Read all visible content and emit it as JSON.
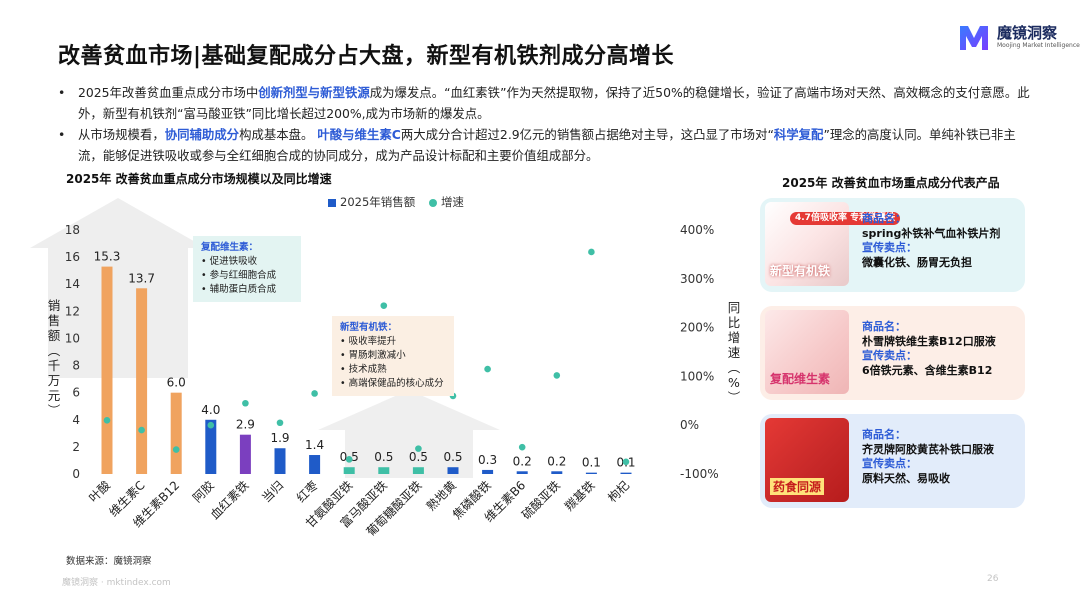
{
  "header": {
    "title": "改善贫血市场|基础复配成分占大盘，新型有机铁剂成分高增长",
    "logo_text": "魔镜洞察",
    "logo_subtext": "Moojing Market Intelligence"
  },
  "bullets": [
    {
      "marker": "•",
      "segments": [
        {
          "text": "2025年改善贫血重点成分市场中",
          "hl": false
        },
        {
          "text": "创新剂型与新型铁源",
          "hl": true
        },
        {
          "text": "成为爆发点。“血红素铁”作为天然提取物，保持了近50%的稳健增长，验证了高端市场对天然、高效概念的支付意愿。此外，新型有机铁剂“富马酸亚铁”同比增长超过200%,成为市场新的爆发点。",
          "hl": false
        }
      ]
    },
    {
      "marker": "•",
      "segments": [
        {
          "text": "从市场规模看，",
          "hl": false
        },
        {
          "text": "协同辅助成分",
          "hl": true
        },
        {
          "text": "构成基本盘。 ",
          "hl": false
        },
        {
          "text": "叶酸与维生素C",
          "hl": true
        },
        {
          "text": "两大成分合计超过2.9亿元的销售额占据绝对主导，这凸显了市场对“",
          "hl": false
        },
        {
          "text": "科学复配",
          "hl": true
        },
        {
          "text": "”理念的高度认同。单纯补铁已非主流，能够促进铁吸收或参与全红细胞合成的协同成分，成为产品设计标配和主要价值组成部分。",
          "hl": false
        }
      ]
    }
  ],
  "chart_title": "2025年 改善贫血重点成分市场规模以及同比增速",
  "right_title": "2025年 改善贫血市场重点成分代表产品",
  "legend": {
    "bar": "2025年销售额",
    "dot": "增速"
  },
  "y_axis_label": [
    "销",
    "售",
    "额",
    "︵",
    "千",
    "万",
    "元",
    "︶"
  ],
  "y2_axis_label": [
    "同",
    "比",
    "增",
    "速",
    "︵",
    "%",
    "︶"
  ],
  "notes": [
    {
      "title": "复配维生素：",
      "items": [
        "促进铁吸收",
        "参与红细胞合成",
        "辅助蛋白质合成"
      ]
    },
    {
      "title": "新型有机铁：",
      "items": [
        "吸收率提升",
        "胃肠刺激减小",
        "技术成熟",
        "高端保健品的核心成分"
      ]
    }
  ],
  "chart_data": {
    "type": "bar",
    "title": "2025年 改善贫血重点成分市场规模以及同比增速",
    "categories": [
      "叶酸",
      "维生素C",
      "维生素B12",
      "阿胶",
      "血红素铁",
      "当归",
      "红枣",
      "甘氨酸亚铁",
      "富马酸亚铁",
      "葡萄糖酸亚铁",
      "熟地黄",
      "焦磷酸铁",
      "维生素B6",
      "硫酸亚铁",
      "羰基铁",
      "枸杞"
    ],
    "series": [
      {
        "name": "2025年销售额",
        "axis": "left",
        "values": [
          15.3,
          13.7,
          6.0,
          4.0,
          2.9,
          1.9,
          1.4,
          0.5,
          0.5,
          0.5,
          0.5,
          0.3,
          0.2,
          0.2,
          0.1,
          0.1
        ],
        "colors": [
          "#f0a35f",
          "#f0a35f",
          "#f0a35f",
          "#1f5bc8",
          "#7b3fbf",
          "#1f5bc8",
          "#1f5bc8",
          "#3fbfa6",
          "#3fbfa6",
          "#3fbfa6",
          "#1f5bc8",
          "#1f5bc8",
          "#1f5bc8",
          "#1f5bc8",
          "#1f5bc8",
          "#1f5bc8"
        ]
      },
      {
        "name": "增速",
        "axis": "right",
        "type": "scatter",
        "values": [
          10,
          -10,
          -50,
          0,
          45,
          5,
          65,
          -70,
          245,
          -48,
          60,
          115,
          -45,
          102,
          355,
          -75
        ]
      }
    ],
    "ylabel": "销售额（千万元）",
    "y2label": "同比增速（%）",
    "ylim": [
      0,
      18
    ],
    "yticks": [
      0,
      2,
      4,
      6,
      8,
      10,
      12,
      14,
      16,
      18
    ],
    "y2lim": [
      -100,
      400
    ],
    "y2ticks": [
      "-100%",
      "0%",
      "100%",
      "200%",
      "300%",
      "400%"
    ],
    "y2tick_values": [
      -100,
      0,
      100,
      200,
      300,
      400
    ],
    "grid": false,
    "colors": {
      "orange": "#f0a35f",
      "blue": "#1f5bc8",
      "purple": "#7b3fbf",
      "teal": "#3fbfa6"
    }
  },
  "products": [
    {
      "image_tag": "4.7倍吸收率 专利微囊铁",
      "badge": "新型有机铁",
      "name_label": "商品名：",
      "name": "spring补铁补气血补铁片剂",
      "point_label": "宣传卖点：",
      "point": "微囊化铁、肠胃无负担"
    },
    {
      "image_tag": "",
      "badge": "复配维生素",
      "name_label": "商品名：",
      "name": "朴雪牌铁维生素B12口服液",
      "point_label": "宣传卖点：",
      "point": "6倍铁元素、含维生素B12"
    },
    {
      "image_tag": "",
      "badge": "药食同源",
      "name_label": "商品名：",
      "name": "齐灵牌阿胶黄芪补铁口服液",
      "point_label": "宣传卖点：",
      "point": "原料天然、易吸收"
    }
  ],
  "source": "数据来源：魔镜洞察",
  "footer": {
    "left": "魔镜洞察 · mktindex.com",
    "page": "26"
  }
}
